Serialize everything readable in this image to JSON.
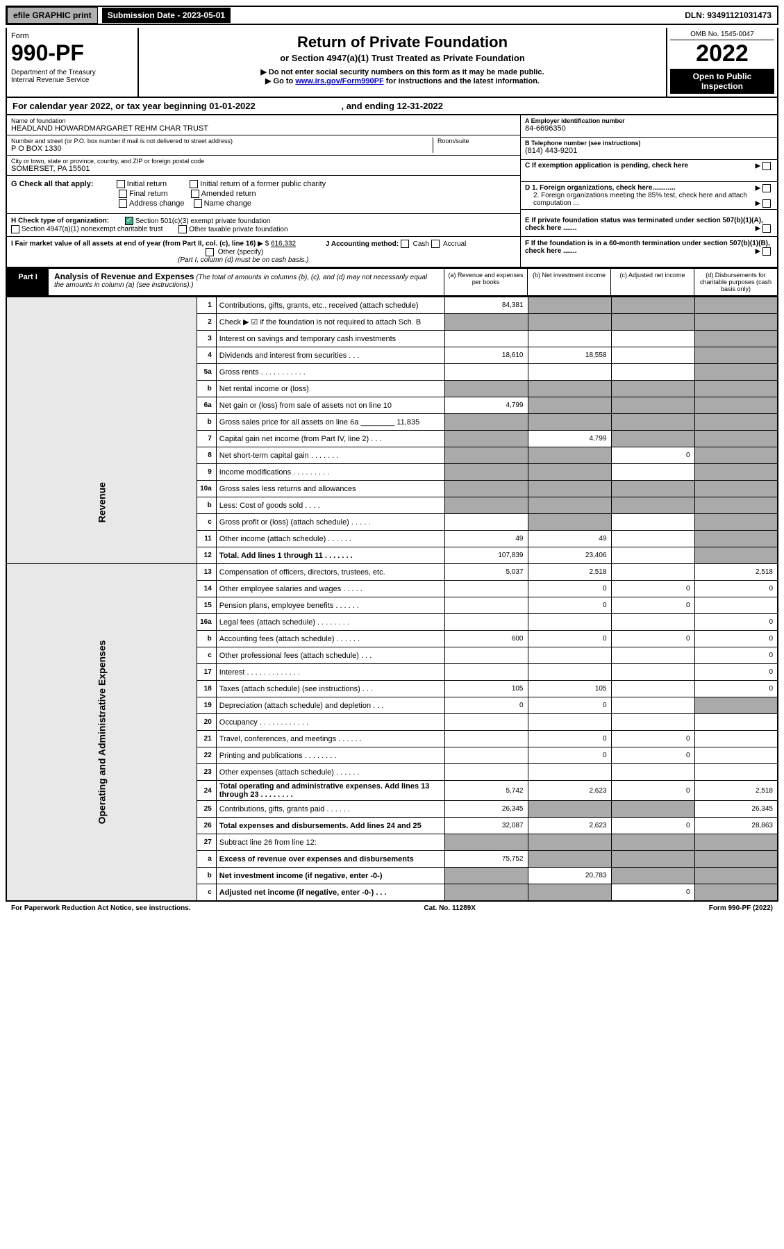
{
  "topbar": {
    "efile": "efile GRAPHIC print",
    "submission": "Submission Date - 2023-05-01",
    "dln": "DLN: 93491121031473"
  },
  "header": {
    "form_label": "Form",
    "form_no": "990-PF",
    "dept": "Department of the Treasury\nInternal Revenue Service",
    "title": "Return of Private Foundation",
    "sub1": "or Section 4947(a)(1) Trust Treated as Private Foundation",
    "sub2": "▶ Do not enter social security numbers on this form as it may be made public.",
    "sub3_pre": "▶ Go to ",
    "sub3_link": "www.irs.gov/Form990PF",
    "sub3_post": " for instructions and the latest information.",
    "omb": "OMB No. 1545-0047",
    "year": "2022",
    "open": "Open to Public Inspection"
  },
  "cal_year": {
    "text_pre": "For calendar year 2022, or tax year beginning ",
    "begin": "01-01-2022",
    "text_mid": " , and ending ",
    "end": "12-31-2022"
  },
  "foundation": {
    "name_label": "Name of foundation",
    "name": "HEADLAND HOWARDMARGARET REHM CHAR TRUST",
    "addr_label": "Number and street (or P.O. box number if mail is not delivered to street address)",
    "addr": "P O BOX 1330",
    "room_label": "Room/suite",
    "city_label": "City or town, state or province, country, and ZIP or foreign postal code",
    "city": "SOMERSET, PA  15501",
    "ein_label": "A Employer identification number",
    "ein": "84-6696350",
    "tel_label": "B Telephone number (see instructions)",
    "tel": "(814) 443-9201",
    "c_label": "C If exemption application is pending, check here",
    "d1": "D 1. Foreign organizations, check here............",
    "d2": "2. Foreign organizations meeting the 85% test, check here and attach computation ...",
    "e": "E If private foundation status was terminated under section 507(b)(1)(A), check here .......",
    "f": "F If the foundation is in a 60-month termination under section 507(b)(1)(B), check here .......",
    "g_label": "G Check all that apply:",
    "g_opts": [
      "Initial return",
      "Initial return of a former public charity",
      "Final return",
      "Amended return",
      "Address change",
      "Name change"
    ],
    "h_label": "H Check type of organization:",
    "h1": "Section 501(c)(3) exempt private foundation",
    "h2": "Section 4947(a)(1) nonexempt charitable trust",
    "h3": "Other taxable private foundation",
    "i_label": "I Fair market value of all assets at end of year (from Part II, col. (c), line 16)",
    "i_val": "616,332",
    "j_label": "J Accounting method:",
    "j_opts": [
      "Cash",
      "Accrual",
      "Other (specify)"
    ],
    "j_note": "(Part I, column (d) must be on cash basis.)"
  },
  "part1": {
    "label": "Part I",
    "title": "Analysis of Revenue and Expenses",
    "note": "(The total of amounts in columns (b), (c), and (d) may not necessarily equal the amounts in column (a) (see instructions).)",
    "col_a": "(a) Revenue and expenses per books",
    "col_b": "(b) Net investment income",
    "col_c": "(c) Adjusted net income",
    "col_d": "(d) Disbursements for charitable purposes (cash basis only)"
  },
  "side_labels": {
    "revenue": "Revenue",
    "expenses": "Operating and Administrative Expenses"
  },
  "rows": [
    {
      "n": "1",
      "desc": "Contributions, gifts, grants, etc., received (attach schedule)",
      "a": "84,381",
      "b": "",
      "c": "",
      "d": "",
      "shade_b": true,
      "shade_c": true,
      "shade_d": true
    },
    {
      "n": "2",
      "desc": "Check ▶ ☑ if the foundation is not required to attach Sch. B",
      "a": "",
      "b": "",
      "c": "",
      "d": "",
      "shade_a": true,
      "shade_b": true,
      "shade_c": true,
      "shade_d": true
    },
    {
      "n": "3",
      "desc": "Interest on savings and temporary cash investments",
      "a": "",
      "b": "",
      "c": "",
      "d": "",
      "shade_d": true
    },
    {
      "n": "4",
      "desc": "Dividends and interest from securities  .  .  .",
      "a": "18,610",
      "b": "18,558",
      "c": "",
      "d": "",
      "shade_d": true
    },
    {
      "n": "5a",
      "desc": "Gross rents  .  .  .  .  .  .  .  .  .  .  .",
      "a": "",
      "b": "",
      "c": "",
      "d": "",
      "shade_d": true
    },
    {
      "n": "b",
      "desc": "Net rental income or (loss)",
      "a": "",
      "b": "",
      "c": "",
      "d": "",
      "shade_a": true,
      "shade_b": true,
      "shade_c": true,
      "shade_d": true
    },
    {
      "n": "6a",
      "desc": "Net gain or (loss) from sale of assets not on line 10",
      "a": "4,799",
      "b": "",
      "c": "",
      "d": "",
      "shade_b": true,
      "shade_c": true,
      "shade_d": true
    },
    {
      "n": "b",
      "desc": "Gross sales price for all assets on line 6a ________ 11,835",
      "a": "",
      "b": "",
      "c": "",
      "d": "",
      "shade_a": true,
      "shade_b": true,
      "shade_c": true,
      "shade_d": true
    },
    {
      "n": "7",
      "desc": "Capital gain net income (from Part IV, line 2)  .  .  .",
      "a": "",
      "b": "4,799",
      "c": "",
      "d": "",
      "shade_a": true,
      "shade_c": true,
      "shade_d": true
    },
    {
      "n": "8",
      "desc": "Net short-term capital gain  .  .  .  .  .  .  .",
      "a": "",
      "b": "",
      "c": "0",
      "d": "",
      "shade_a": true,
      "shade_b": true,
      "shade_d": true
    },
    {
      "n": "9",
      "desc": "Income modifications  .  .  .  .  .  .  .  .  .",
      "a": "",
      "b": "",
      "c": "",
      "d": "",
      "shade_a": true,
      "shade_b": true,
      "shade_d": true
    },
    {
      "n": "10a",
      "desc": "Gross sales less returns and allowances",
      "a": "",
      "b": "",
      "c": "",
      "d": "",
      "shade_a": true,
      "shade_b": true,
      "shade_c": true,
      "shade_d": true
    },
    {
      "n": "b",
      "desc": "Less: Cost of goods sold  .  .  .  .",
      "a": "",
      "b": "",
      "c": "",
      "d": "",
      "shade_a": true,
      "shade_b": true,
      "shade_c": true,
      "shade_d": true
    },
    {
      "n": "c",
      "desc": "Gross profit or (loss) (attach schedule)  .  .  .  .  .",
      "a": "",
      "b": "",
      "c": "",
      "d": "",
      "shade_b": true,
      "shade_d": true
    },
    {
      "n": "11",
      "desc": "Other income (attach schedule)  .  .  .  .  .  .",
      "a": "49",
      "b": "49",
      "c": "",
      "d": "",
      "shade_d": true
    },
    {
      "n": "12",
      "desc": "Total. Add lines 1 through 11  .  .  .  .  .  .  .",
      "a": "107,839",
      "b": "23,406",
      "c": "",
      "d": "",
      "bold": true,
      "shade_d": true
    },
    {
      "n": "13",
      "desc": "Compensation of officers, directors, trustees, etc.",
      "a": "5,037",
      "b": "2,518",
      "c": "",
      "d": "2,518"
    },
    {
      "n": "14",
      "desc": "Other employee salaries and wages  .  .  .  .  .",
      "a": "",
      "b": "0",
      "c": "0",
      "d": "0"
    },
    {
      "n": "15",
      "desc": "Pension plans, employee benefits  .  .  .  .  .  .",
      "a": "",
      "b": "0",
      "c": "0",
      "d": ""
    },
    {
      "n": "16a",
      "desc": "Legal fees (attach schedule)  .  .  .  .  .  .  .  .",
      "a": "",
      "b": "",
      "c": "",
      "d": "0"
    },
    {
      "n": "b",
      "desc": "Accounting fees (attach schedule)  .  .  .  .  .  .",
      "a": "600",
      "b": "0",
      "c": "0",
      "d": "0"
    },
    {
      "n": "c",
      "desc": "Other professional fees (attach schedule)  .  .  .",
      "a": "",
      "b": "",
      "c": "",
      "d": "0"
    },
    {
      "n": "17",
      "desc": "Interest  .  .  .  .  .  .  .  .  .  .  .  .  .",
      "a": "",
      "b": "",
      "c": "",
      "d": "0"
    },
    {
      "n": "18",
      "desc": "Taxes (attach schedule) (see instructions)  .  .  .",
      "a": "105",
      "b": "105",
      "c": "",
      "d": "0"
    },
    {
      "n": "19",
      "desc": "Depreciation (attach schedule) and depletion  .  .  .",
      "a": "0",
      "b": "0",
      "c": "",
      "d": "",
      "shade_d": true
    },
    {
      "n": "20",
      "desc": "Occupancy  .  .  .  .  .  .  .  .  .  .  .  .",
      "a": "",
      "b": "",
      "c": "",
      "d": ""
    },
    {
      "n": "21",
      "desc": "Travel, conferences, and meetings  .  .  .  .  .  .",
      "a": "",
      "b": "0",
      "c": "0",
      "d": ""
    },
    {
      "n": "22",
      "desc": "Printing and publications  .  .  .  .  .  .  .  .",
      "a": "",
      "b": "0",
      "c": "0",
      "d": ""
    },
    {
      "n": "23",
      "desc": "Other expenses (attach schedule)  .  .  .  .  .  .",
      "a": "",
      "b": "",
      "c": "",
      "d": ""
    },
    {
      "n": "24",
      "desc": "Total operating and administrative expenses. Add lines 13 through 23  .  .  .  .  .  .  .  .",
      "a": "5,742",
      "b": "2,623",
      "c": "0",
      "d": "2,518",
      "bold": true
    },
    {
      "n": "25",
      "desc": "Contributions, gifts, grants paid  .  .  .  .  .  .",
      "a": "26,345",
      "b": "",
      "c": "",
      "d": "26,345",
      "shade_b": true,
      "shade_c": true
    },
    {
      "n": "26",
      "desc": "Total expenses and disbursements. Add lines 24 and 25",
      "a": "32,087",
      "b": "2,623",
      "c": "0",
      "d": "28,863",
      "bold": true
    },
    {
      "n": "27",
      "desc": "Subtract line 26 from line 12:",
      "a": "",
      "b": "",
      "c": "",
      "d": "",
      "shade_a": true,
      "shade_b": true,
      "shade_c": true,
      "shade_d": true
    },
    {
      "n": "a",
      "desc": "Excess of revenue over expenses and disbursements",
      "a": "75,752",
      "b": "",
      "c": "",
      "d": "",
      "bold": true,
      "shade_b": true,
      "shade_c": true,
      "shade_d": true
    },
    {
      "n": "b",
      "desc": "Net investment income (if negative, enter -0-)",
      "a": "",
      "b": "20,783",
      "c": "",
      "d": "",
      "bold": true,
      "shade_a": true,
      "shade_c": true,
      "shade_d": true
    },
    {
      "n": "c",
      "desc": "Adjusted net income (if negative, enter -0-)  .  .  .",
      "a": "",
      "b": "",
      "c": "0",
      "d": "",
      "bold": true,
      "shade_a": true,
      "shade_b": true,
      "shade_d": true
    }
  ],
  "footer": {
    "left": "For Paperwork Reduction Act Notice, see instructions.",
    "mid": "Cat. No. 11289X",
    "right": "Form 990-PF (2022)"
  }
}
